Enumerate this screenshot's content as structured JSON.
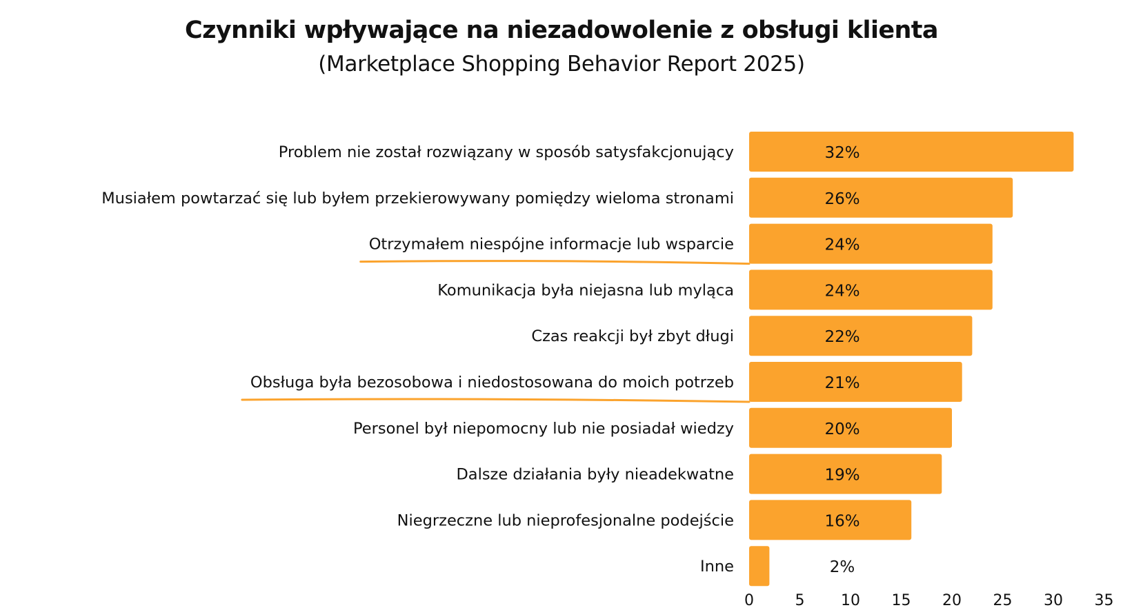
{
  "chart_data": {
    "type": "bar",
    "orientation": "horizontal",
    "title": "Czynniki wpływające na niezadowolenie z obsługi klienta",
    "subtitle": "(Marketplace Shopping Behavior Report 2025)",
    "categories": [
      "Problem nie został rozwiązany w sposób satysfakcjonujący",
      "Musiałem powtarzać się lub byłem przekierowywany pomiędzy wieloma stronami",
      "Otrzymałem niespójne informacje lub wsparcie",
      "Komunikacja była niejasna lub myląca",
      "Czas reakcji był zbyt długi",
      "Obsługa była bezosobowa i niedostosowana do moich potrzeb",
      "Personel był niepomocny lub nie posiadał wiedzy",
      "Dalsze działania były nieadekwatne",
      "Niegrzeczne lub nieprofesjonalne podejście",
      "Inne"
    ],
    "values": [
      32,
      26,
      24,
      24,
      22,
      21,
      20,
      19,
      16,
      2
    ],
    "value_labels": [
      "32%",
      "26%",
      "24%",
      "24%",
      "22%",
      "21%",
      "20%",
      "19%",
      "16%",
      "2%"
    ],
    "highlighted": [
      "Otrzymałem niespójne informacje lub wsparcie",
      "Obsługa była bezosobowa i niedostosowana do moich potrzeb"
    ],
    "xlim": [
      0,
      35
    ],
    "xticks": [
      0,
      5,
      10,
      15,
      20,
      25,
      30,
      35
    ],
    "xlabel": "",
    "ylabel": "",
    "grid": false,
    "legend": "none",
    "bar_color": "#FBA32D",
    "highlight_color": "#FBA32D",
    "text_color": "#111111"
  }
}
